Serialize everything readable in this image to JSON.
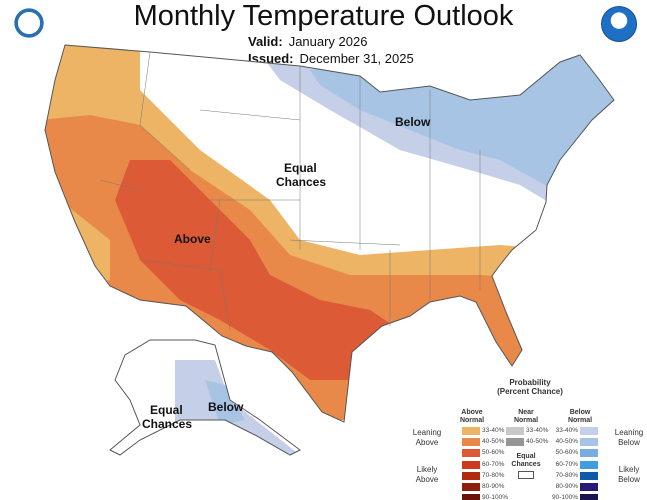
{
  "title": "Monthly Temperature Outlook",
  "valid_label": "Valid:",
  "valid_value": "January 2026",
  "issued_label": "Issued:",
  "issued_value": "December 31, 2025",
  "logos": {
    "left": "noaa-doc-seal",
    "right": "noaa-logo"
  },
  "map_labels": {
    "above": "Above",
    "below": "Below",
    "equal_chances": [
      "Equal",
      "Chances"
    ],
    "alaska_equal": [
      "Equal",
      "Chances"
    ],
    "alaska_below": "Below"
  },
  "legend": {
    "title": "Probability",
    "subtitle": "(Percent Chance)",
    "above_header": [
      "Above",
      "Normal"
    ],
    "near_header": [
      "Near",
      "Normal"
    ],
    "below_header": [
      "Below",
      "Normal"
    ],
    "leaning_above": [
      "Leaning",
      "Above"
    ],
    "likely_above": [
      "Likely",
      "Above"
    ],
    "leaning_below": [
      "Leaning",
      "Below"
    ],
    "likely_below": [
      "Likely",
      "Below"
    ],
    "equal_chances": [
      "Equal",
      "Chances"
    ],
    "above": [
      {
        "range": "33-40%",
        "color": "#ecb464"
      },
      {
        "range": "40-50%",
        "color": "#e8894a"
      },
      {
        "range": "50-60%",
        "color": "#dc5a35"
      },
      {
        "range": "60-70%",
        "color": "#cc3a1e"
      },
      {
        "range": "70-80%",
        "color": "#b02a10"
      },
      {
        "range": "80-90%",
        "color": "#8e1e0c"
      },
      {
        "range": "90-100%",
        "color": "#6a1408"
      }
    ],
    "near": [
      {
        "range": "33-40%",
        "color": "#c8c8c8"
      },
      {
        "range": "40-50%",
        "color": "#969696"
      }
    ],
    "below": [
      {
        "range": "33-40%",
        "color": "#c5cfe8"
      },
      {
        "range": "40-50%",
        "color": "#a8c4e4"
      },
      {
        "range": "50-60%",
        "color": "#78aede"
      },
      {
        "range": "60-70%",
        "color": "#3e9ee0"
      },
      {
        "range": "70-80%",
        "color": "#0c5aa8"
      },
      {
        "range": "80-90%",
        "color": "#2a1a78"
      },
      {
        "range": "90-100%",
        "color": "#1c1450"
      }
    ]
  }
}
